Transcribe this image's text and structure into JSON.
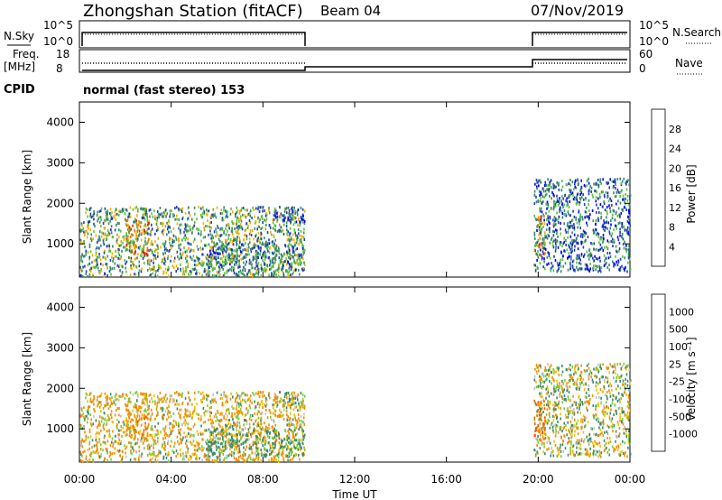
{
  "header": {
    "station": "Zhongshan Station (fitACF)",
    "beam": "Beam 04",
    "date": "07/Nov/2019"
  },
  "noise_panel": {
    "left_label": "N.Sky",
    "left_ticks": [
      "10^5",
      "10^0"
    ],
    "right_ticks": [
      "10^5",
      "10^0"
    ],
    "right_label": "N.Search"
  },
  "freq_panel": {
    "left_label_top": "Freq.",
    "left_label_bottom": "[MHz]",
    "left_ticks": [
      "18",
      "8"
    ],
    "right_ticks": [
      "60",
      "0"
    ],
    "right_label": "Nave"
  },
  "cpid": {
    "label": "CPID",
    "text": "normal (fast stereo) 153"
  },
  "x_axis": {
    "label": "Time UT",
    "ticks": [
      "00:00",
      "04:00",
      "08:00",
      "12:00",
      "16:00",
      "20:00",
      "00:00"
    ]
  },
  "power_panel": {
    "ylabel": "Slant Range [km]",
    "yticks": [
      "4000",
      "3000",
      "2000",
      "1000"
    ],
    "colorbar_label": "Power [dB]",
    "colorbar_ticks": [
      "28",
      "24",
      "20",
      "16",
      "12",
      "8",
      "4"
    ],
    "colors": [
      "#0000ff",
      "#2040b0",
      "#3a8a6a",
      "#5cc040",
      "#f0b000",
      "#f07000",
      "#e02000",
      "#ff0000"
    ]
  },
  "velocity_panel": {
    "ylabel": "Slant Range [km]",
    "yticks": [
      "4000",
      "3000",
      "2000",
      "1000"
    ],
    "colorbar_label": "Velocity [m s⁻¹]",
    "colorbar_ticks": [
      "1000",
      "500",
      "100",
      "25",
      "-25",
      "-100",
      "-500",
      "-1000"
    ],
    "colors": [
      "#1a2fc0",
      "#2060b0",
      "#3a8a6a",
      "#70d040",
      "#c0c0c0",
      "#f0c000",
      "#f09000",
      "#f06000",
      "#ff0000"
    ]
  },
  "chart_data": {
    "type": "heatmap",
    "x_range_hours": [
      0,
      24
    ],
    "y_range_km": [
      180,
      4500
    ],
    "data_gap_hours": [
      9.8,
      19.8
    ],
    "scatter_regions": [
      {
        "t_start": 0.0,
        "t_end": 9.8,
        "range_km": [
          180,
          1900
        ],
        "power_dB": 12,
        "velocity_ms": -100
      },
      {
        "t_start": 2.0,
        "t_end": 3.0,
        "range_km": [
          700,
          1600
        ],
        "power_dB": 20,
        "velocity_ms": -300
      },
      {
        "t_start": 5.5,
        "t_end": 9.8,
        "range_km": [
          300,
          1000
        ],
        "power_dB": 10,
        "velocity_ms": 200
      },
      {
        "t_start": 8.5,
        "t_end": 9.8,
        "range_km": [
          1500,
          1900
        ],
        "power_dB": 6,
        "velocity_ms": 0
      },
      {
        "t_start": 19.8,
        "t_end": 24.0,
        "range_km": [
          300,
          2600
        ],
        "power_dB": 8,
        "velocity_ms": 0
      },
      {
        "t_start": 19.8,
        "t_end": 20.3,
        "range_km": [
          700,
          1700
        ],
        "power_dB": 18,
        "velocity_ms": -600
      }
    ],
    "power_scale_dB": [
      0,
      30
    ],
    "velocity_scale_ms": [
      -1000,
      1000
    ]
  }
}
